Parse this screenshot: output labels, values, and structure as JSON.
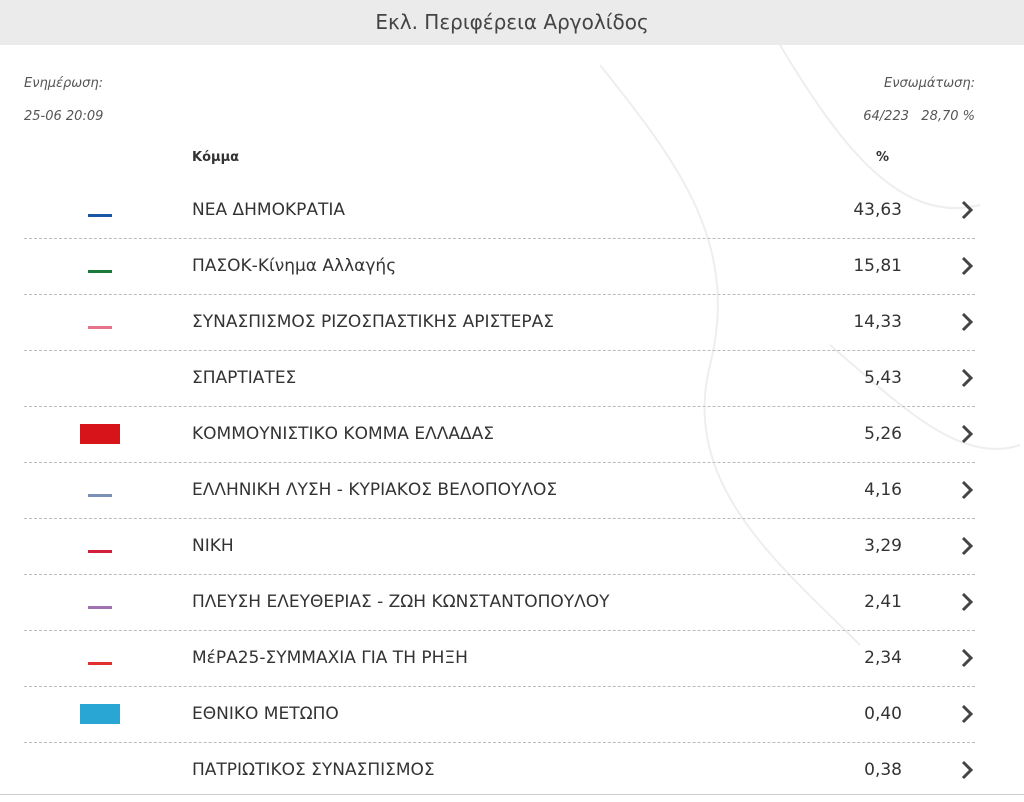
{
  "header": {
    "title": "Εκλ. Περιφέρεια Αργολίδος"
  },
  "info": {
    "update_label": "Ενημέρωση:",
    "update_time": "25-06 20:09",
    "count_label": "Ενσωμάτωση:",
    "count": "64/223",
    "count_percent": "28,70 %"
  },
  "table": {
    "columns": [
      "Κόμμα",
      "%"
    ],
    "rows": [
      [
        "ΝΕΑ ΔΗΜΟΚΡΑΤΙΑ",
        "43,63"
      ],
      [
        "ΠΑΣΟΚ-Κίνημα Αλλαγής",
        "15,81"
      ],
      [
        "ΣΥΝΑΣΠΙΣΜΟΣ ΡΙΖΟΣΠΑΣΤΙΚΗΣ ΑΡΙΣΤΕΡΑΣ",
        "14,33"
      ],
      [
        "ΣΠΑΡΤΙΑΤΕΣ",
        "5,43"
      ],
      [
        "ΚΟΜΜΟΥΝΙΣΤΙΚΟ ΚΟΜΜΑ ΕΛΛΑΔΑΣ",
        "5,26"
      ],
      [
        "ΕΛΛΗΝΙΚΗ ΛΥΣΗ - ΚΥΡΙΑΚΟΣ ΒΕΛΟΠΟΥΛΟΣ",
        "4,16"
      ],
      [
        "ΝΙΚΗ",
        "3,29"
      ],
      [
        "ΠΛΕΥΣΗ ΕΛΕΥΘΕΡΙΑΣ - ΖΩΗ ΚΩΝΣΤΑΝΤΟΠΟΥΛΟΥ",
        "2,41"
      ],
      [
        "ΜέΡΑ25-ΣΥΜΜΑΧΙΑ ΓΙΑ ΤΗ ΡΗΞΗ",
        "2,34"
      ],
      [
        "ΕΘΝΙΚΟ ΜΕΤΩΠΟ",
        "0,40"
      ],
      [
        "ΠΑΤΡΙΩΤΙΚΟΣ ΣΥΝΑΣΠΙΣΜΟΣ",
        "0,38"
      ]
    ]
  }
}
